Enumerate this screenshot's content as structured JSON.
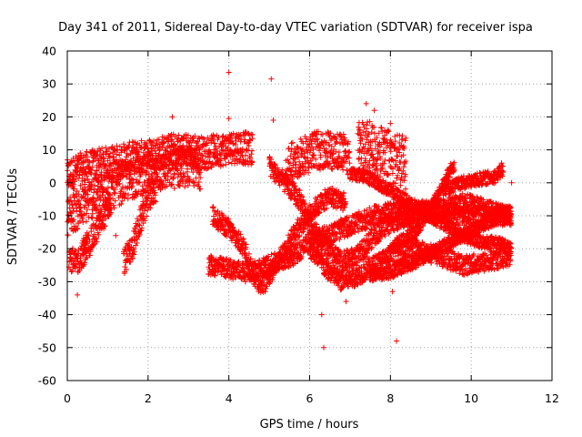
{
  "chart_data": {
    "type": "scatter",
    "title": "Day 341 of 2011, Sidereal Day-to-day VTEC variation (SDTVAR) for receiver ispa",
    "xlabel": "GPS time / hours",
    "ylabel": "SDTVAR / TECUs",
    "xlim": [
      0,
      12
    ],
    "ylim": [
      -60,
      40
    ],
    "xticks": [
      "0",
      "2",
      "4",
      "6",
      "8",
      "10",
      "12"
    ],
    "yticks": [
      "40",
      "30",
      "20",
      "10",
      "0",
      "-10",
      "-20",
      "-30",
      "-40",
      "-50",
      "-60"
    ],
    "grid": true,
    "marker": "+",
    "color": "#ff0000",
    "tracks": [
      {
        "points": [
          [
            0.0,
            2
          ],
          [
            0.3,
            4
          ],
          [
            0.6,
            5
          ],
          [
            1.0,
            6
          ],
          [
            1.4,
            7
          ],
          [
            1.8,
            8
          ],
          [
            2.2,
            9
          ],
          [
            2.6,
            10
          ],
          [
            3.0,
            10
          ],
          [
            3.4,
            9
          ],
          [
            3.8,
            10
          ],
          [
            4.2,
            11
          ],
          [
            4.6,
            10
          ]
        ],
        "spread": 5
      },
      {
        "points": [
          [
            0.0,
            -10
          ],
          [
            0.3,
            -8
          ],
          [
            0.6,
            -5
          ],
          [
            1.0,
            -3
          ],
          [
            1.4,
            0
          ],
          [
            1.8,
            2
          ],
          [
            2.2,
            3
          ],
          [
            2.6,
            4
          ],
          [
            3.0,
            5
          ],
          [
            3.3,
            4
          ]
        ],
        "spread": 6
      },
      {
        "points": [
          [
            0.05,
            -22
          ],
          [
            0.2,
            -25
          ],
          [
            0.35,
            -22
          ],
          [
            0.5,
            -18
          ]
        ],
        "spread": 4
      },
      {
        "points": [
          [
            0.4,
            -22
          ],
          [
            0.7,
            -15
          ],
          [
            0.9,
            -10
          ],
          [
            1.1,
            -6
          ]
        ],
        "spread": 4
      },
      {
        "points": [
          [
            1.4,
            -24
          ],
          [
            1.6,
            -20
          ],
          [
            1.8,
            -12
          ],
          [
            2.0,
            -5
          ],
          [
            2.2,
            -2
          ]
        ],
        "spread": 4
      },
      {
        "points": [
          [
            3.5,
            -25
          ],
          [
            4.0,
            -26
          ],
          [
            4.4,
            -27
          ],
          [
            4.8,
            -26
          ],
          [
            5.2,
            -24
          ],
          [
            5.6,
            -22
          ],
          [
            6.0,
            -18
          ],
          [
            6.4,
            -16
          ],
          [
            6.8,
            -14
          ],
          [
            7.2,
            -12
          ],
          [
            7.6,
            -10
          ],
          [
            8.0,
            -9
          ],
          [
            8.6,
            -8
          ],
          [
            9.2,
            -9
          ],
          [
            9.8,
            -10
          ],
          [
            10.4,
            -10
          ],
          [
            11.0,
            -10
          ]
        ],
        "spread": 3
      },
      {
        "points": [
          [
            3.6,
            -10
          ],
          [
            4.0,
            -14
          ],
          [
            4.4,
            -20
          ],
          [
            4.6,
            -28
          ],
          [
            4.8,
            -31
          ],
          [
            5.0,
            -28
          ],
          [
            5.3,
            -22
          ],
          [
            5.7,
            -14
          ],
          [
            6.1,
            -8
          ],
          [
            6.5,
            -4
          ],
          [
            6.9,
            -6
          ]
        ],
        "spread": 3
      },
      {
        "points": [
          [
            5.0,
            5
          ],
          [
            5.4,
            0
          ],
          [
            5.8,
            -6
          ],
          [
            6.0,
            -12
          ],
          [
            6.4,
            -20
          ],
          [
            6.8,
            -24
          ],
          [
            7.2,
            -22
          ],
          [
            7.6,
            -16
          ],
          [
            8.0,
            -12
          ],
          [
            8.6,
            -10
          ],
          [
            9.2,
            -8
          ],
          [
            9.8,
            -6
          ],
          [
            10.4,
            -8
          ],
          [
            11.0,
            -10
          ]
        ],
        "spread": 3
      },
      {
        "points": [
          [
            6.0,
            -20
          ],
          [
            6.4,
            -26
          ],
          [
            6.8,
            -30
          ],
          [
            7.2,
            -28
          ],
          [
            7.6,
            -25
          ],
          [
            8.0,
            -22
          ],
          [
            8.6,
            -20
          ],
          [
            9.2,
            -22
          ],
          [
            9.8,
            -25
          ],
          [
            10.4,
            -24
          ],
          [
            11.0,
            -22
          ]
        ],
        "spread": 3
      },
      {
        "points": [
          [
            7.0,
            3
          ],
          [
            7.4,
            2
          ],
          [
            7.8,
            -1
          ],
          [
            8.2,
            -4
          ],
          [
            8.6,
            -7
          ],
          [
            9.0,
            -10
          ],
          [
            9.4,
            -13
          ],
          [
            9.8,
            -16
          ],
          [
            10.2,
            -18
          ],
          [
            10.6,
            -18
          ],
          [
            11.0,
            -20
          ]
        ],
        "spread": 2
      },
      {
        "points": [
          [
            7.5,
            -28
          ],
          [
            8.0,
            -27
          ],
          [
            8.6,
            -24
          ],
          [
            9.2,
            -20
          ],
          [
            9.8,
            -16
          ],
          [
            10.4,
            -12
          ],
          [
            11.0,
            -9
          ]
        ],
        "spread": 2
      },
      {
        "points": [
          [
            8.0,
            -20
          ],
          [
            8.6,
            -15
          ],
          [
            9.0,
            -8
          ],
          [
            9.4,
            2
          ],
          [
            9.6,
            6
          ]
        ],
        "spread": 2
      },
      {
        "points": [
          [
            9.3,
            -2
          ],
          [
            9.8,
            0
          ],
          [
            10.2,
            1
          ],
          [
            10.6,
            2
          ],
          [
            10.8,
            4
          ]
        ],
        "spread": 2
      },
      {
        "points": [
          [
            7.2,
            12
          ],
          [
            7.6,
            10
          ],
          [
            8.0,
            8
          ],
          [
            8.4,
            6
          ]
        ],
        "spread": 8
      },
      {
        "points": [
          [
            5.4,
            5
          ],
          [
            5.8,
            8
          ],
          [
            6.2,
            10
          ],
          [
            6.6,
            10
          ],
          [
            7.0,
            8
          ]
        ],
        "spread": 6
      }
    ],
    "outliers": [
      [
        0.25,
        -34
      ],
      [
        1.2,
        -16
      ],
      [
        2.6,
        20
      ],
      [
        4.0,
        33.5
      ],
      [
        4.0,
        19.5
      ],
      [
        5.05,
        31.5
      ],
      [
        5.1,
        19
      ],
      [
        6.35,
        -50
      ],
      [
        6.3,
        -40
      ],
      [
        8.15,
        -48
      ],
      [
        4.9,
        -33
      ],
      [
        6.9,
        -36
      ],
      [
        8.05,
        -33
      ],
      [
        10.75,
        6
      ],
      [
        11.0,
        0
      ],
      [
        7.4,
        24
      ],
      [
        7.6,
        22
      ],
      [
        8.0,
        18
      ]
    ]
  }
}
